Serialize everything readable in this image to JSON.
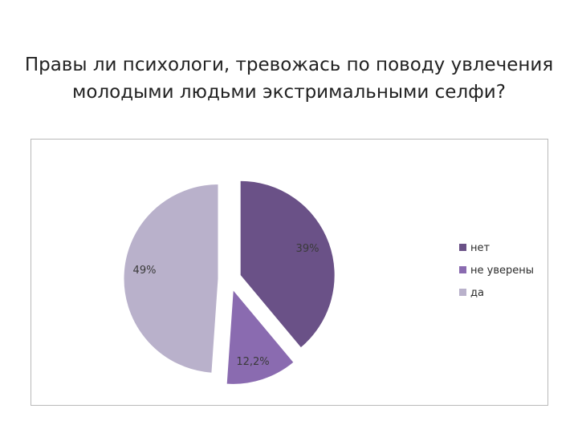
{
  "slide": {
    "title_line1": "Правы ли психологи, тревожась по поводу увлечения",
    "title_line2": "молодыми людьми экстримальными селфи?"
  },
  "chart_data": {
    "type": "pie",
    "title": "Правы ли психологи, тревожась по поводу увлечения молодыми людьми экстримальными селфи?",
    "legend_position": "right",
    "exploded": true,
    "slices": [
      {
        "name": "нет",
        "value": 39,
        "label": "39%",
        "color": "#6a5187"
      },
      {
        "name": "не уверены",
        "value": 12.2,
        "label": "12,2%",
        "color": "#8a6bb0"
      },
      {
        "name": "да",
        "value": 49,
        "label": "49%",
        "color": "#b9b1cb"
      }
    ]
  }
}
